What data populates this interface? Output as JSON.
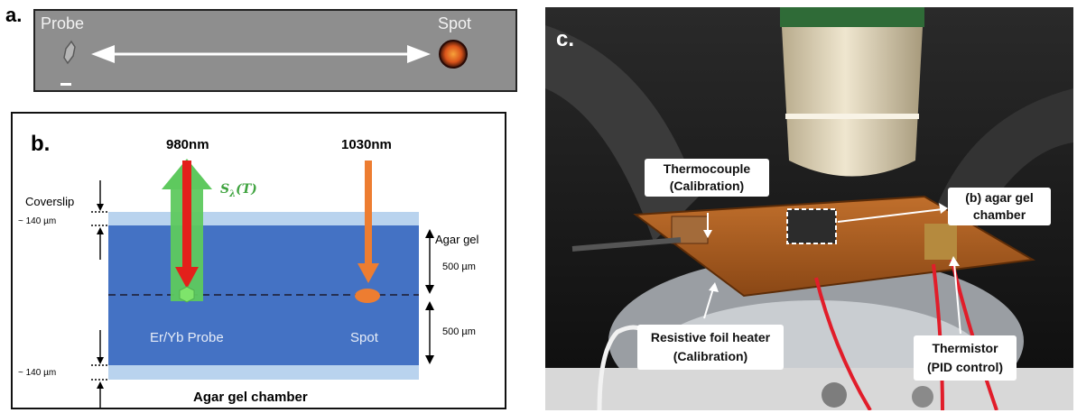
{
  "panel_a": {
    "letter": "a.",
    "probe_label": "Probe",
    "spot_label": "Spot"
  },
  "panel_b": {
    "letter": "b.",
    "beam_980": "980nm",
    "beam_1030": "1030nm",
    "signal_label_main": "S",
    "signal_label_sub": "λ",
    "signal_label_arg": "(T)",
    "coverslip_label": "Coverslip",
    "coverslip_thickness_top": "~ 140 µm",
    "coverslip_thickness_bottom": "~ 140 µm",
    "agar_gel_label": "Agar gel",
    "depth_upper": "500 µm",
    "depth_lower": "500 µm",
    "probe_text": "Er/Yb Probe",
    "spot_text": "Spot",
    "chamber_title": "Agar gel chamber",
    "colors": {
      "coverslip": "#b9d3ee",
      "gel": "#4472c4",
      "beam_980": "#e3201b",
      "beam_1030": "#ed7d31",
      "signal": "#5ec95e",
      "signal_text": "#3fa33f",
      "probe": "#7ee46b"
    }
  },
  "panel_c": {
    "letter": "c.",
    "callouts": {
      "thermocouple_line1": "Thermocouple",
      "thermocouple_line2": "(Calibration)",
      "chamber_line1": "(b) agar gel",
      "chamber_line2": "chamber",
      "heater_line1": "Resistive foil heater",
      "heater_line2": "(Calibration)",
      "thermistor_line1": "Thermistor",
      "thermistor_line2": "(PID control)"
    }
  }
}
